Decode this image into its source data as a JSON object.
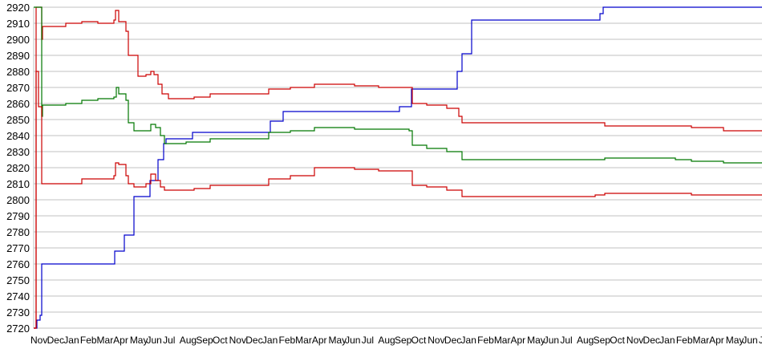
{
  "chart_data": {
    "type": "line",
    "title": "",
    "xlabel": "",
    "ylabel": "",
    "ylim": [
      2720,
      2920
    ],
    "yticks": [
      2720,
      2730,
      2740,
      2750,
      2760,
      2770,
      2780,
      2790,
      2800,
      2810,
      2820,
      2830,
      2840,
      2850,
      2860,
      2870,
      2880,
      2890,
      2900,
      2910,
      2920
    ],
    "xlim": [
      0,
      908
    ],
    "xticks": [
      "Nov",
      "Dec",
      "Jan",
      "Feb",
      "Mar",
      "Apr",
      "May",
      "Jun",
      "Jul",
      "Aug",
      "Sep",
      "Oct",
      "Nov",
      "Dec",
      "Jan",
      "Feb",
      "Mar",
      "Apr",
      "May",
      "Jun",
      "Jul",
      "Aug",
      "Sep",
      "Oct",
      "Nov",
      "Dec",
      "Jan",
      "Feb",
      "Mar",
      "Apr",
      "May",
      "Jun",
      "Jul",
      "Aug",
      "Sep",
      "Oct",
      "Nov",
      "Dec",
      "Jan",
      "Feb",
      "Mar",
      "Apr",
      "May",
      "Jun",
      "Jul"
    ],
    "grid": true,
    "legend": "none",
    "series": [
      {
        "color": "#0000cc",
        "step": true,
        "points": [
          [
            0,
            2720
          ],
          [
            4,
            2725
          ],
          [
            8,
            2728
          ],
          [
            10,
            2760
          ],
          [
            101,
            2768
          ],
          [
            113,
            2778
          ],
          [
            125,
            2802
          ],
          [
            145,
            2812
          ],
          [
            155,
            2825
          ],
          [
            162,
            2835
          ],
          [
            165,
            2838
          ],
          [
            198,
            2842
          ],
          [
            295,
            2849
          ],
          [
            311,
            2855
          ],
          [
            456,
            2858
          ],
          [
            471,
            2869
          ],
          [
            528,
            2880
          ],
          [
            534,
            2891
          ],
          [
            546,
            2912
          ],
          [
            706,
            2916
          ],
          [
            710,
            2920
          ],
          [
            908,
            2920
          ]
        ]
      },
      {
        "color": "#cc0000",
        "step": true,
        "points": [
          [
            0,
            2720
          ],
          [
            3,
            2920
          ],
          [
            10,
            2900
          ],
          [
            11,
            2908
          ],
          [
            40,
            2910
          ],
          [
            60,
            2911
          ],
          [
            80,
            2910
          ],
          [
            100,
            2912
          ],
          [
            102,
            2918
          ],
          [
            106,
            2911
          ],
          [
            115,
            2905
          ],
          [
            118,
            2890
          ],
          [
            125,
            2890
          ],
          [
            130,
            2877
          ],
          [
            140,
            2878
          ],
          [
            146,
            2880
          ],
          [
            150,
            2878
          ],
          [
            155,
            2872
          ],
          [
            160,
            2866
          ],
          [
            168,
            2863
          ],
          [
            200,
            2864
          ],
          [
            220,
            2866
          ],
          [
            270,
            2866
          ],
          [
            293,
            2869
          ],
          [
            320,
            2870
          ],
          [
            350,
            2872
          ],
          [
            400,
            2871
          ],
          [
            430,
            2870
          ],
          [
            468,
            2870
          ],
          [
            472,
            2860
          ],
          [
            490,
            2859
          ],
          [
            515,
            2857
          ],
          [
            530,
            2852
          ],
          [
            534,
            2848
          ],
          [
            700,
            2848
          ],
          [
            712,
            2846
          ],
          [
            800,
            2846
          ],
          [
            820,
            2845
          ],
          [
            860,
            2843
          ],
          [
            908,
            2843
          ]
        ]
      },
      {
        "color": "#007700",
        "step": true,
        "points": [
          [
            0,
            2920
          ],
          [
            3,
            2920
          ],
          [
            10,
            2852
          ],
          [
            11,
            2859
          ],
          [
            40,
            2860
          ],
          [
            60,
            2862
          ],
          [
            80,
            2863
          ],
          [
            100,
            2864
          ],
          [
            103,
            2870
          ],
          [
            106,
            2866
          ],
          [
            115,
            2862
          ],
          [
            118,
            2848
          ],
          [
            125,
            2843
          ],
          [
            140,
            2843
          ],
          [
            146,
            2847
          ],
          [
            152,
            2845
          ],
          [
            158,
            2840
          ],
          [
            163,
            2835
          ],
          [
            190,
            2836
          ],
          [
            220,
            2838
          ],
          [
            270,
            2838
          ],
          [
            293,
            2842
          ],
          [
            320,
            2843
          ],
          [
            350,
            2845
          ],
          [
            400,
            2844
          ],
          [
            430,
            2844
          ],
          [
            468,
            2843
          ],
          [
            472,
            2834
          ],
          [
            490,
            2832
          ],
          [
            515,
            2830
          ],
          [
            530,
            2830
          ],
          [
            534,
            2825
          ],
          [
            700,
            2825
          ],
          [
            712,
            2826
          ],
          [
            800,
            2825
          ],
          [
            820,
            2824
          ],
          [
            860,
            2823
          ],
          [
            908,
            2823
          ]
        ]
      },
      {
        "color": "#cc0000",
        "step": true,
        "points": [
          [
            0,
            2720
          ],
          [
            3,
            2880
          ],
          [
            6,
            2858
          ],
          [
            10,
            2810
          ],
          [
            40,
            2810
          ],
          [
            60,
            2813
          ],
          [
            80,
            2813
          ],
          [
            100,
            2815
          ],
          [
            102,
            2823
          ],
          [
            106,
            2822
          ],
          [
            115,
            2815
          ],
          [
            118,
            2810
          ],
          [
            125,
            2808
          ],
          [
            140,
            2810
          ],
          [
            146,
            2816
          ],
          [
            152,
            2812
          ],
          [
            158,
            2808
          ],
          [
            163,
            2806
          ],
          [
            200,
            2807
          ],
          [
            220,
            2809
          ],
          [
            270,
            2809
          ],
          [
            293,
            2813
          ],
          [
            320,
            2815
          ],
          [
            350,
            2820
          ],
          [
            400,
            2819
          ],
          [
            430,
            2818
          ],
          [
            468,
            2818
          ],
          [
            472,
            2809
          ],
          [
            490,
            2808
          ],
          [
            515,
            2806
          ],
          [
            530,
            2806
          ],
          [
            534,
            2802
          ],
          [
            700,
            2803
          ],
          [
            712,
            2804
          ],
          [
            800,
            2804
          ],
          [
            820,
            2803
          ],
          [
            860,
            2803
          ],
          [
            908,
            2803
          ]
        ]
      }
    ]
  }
}
